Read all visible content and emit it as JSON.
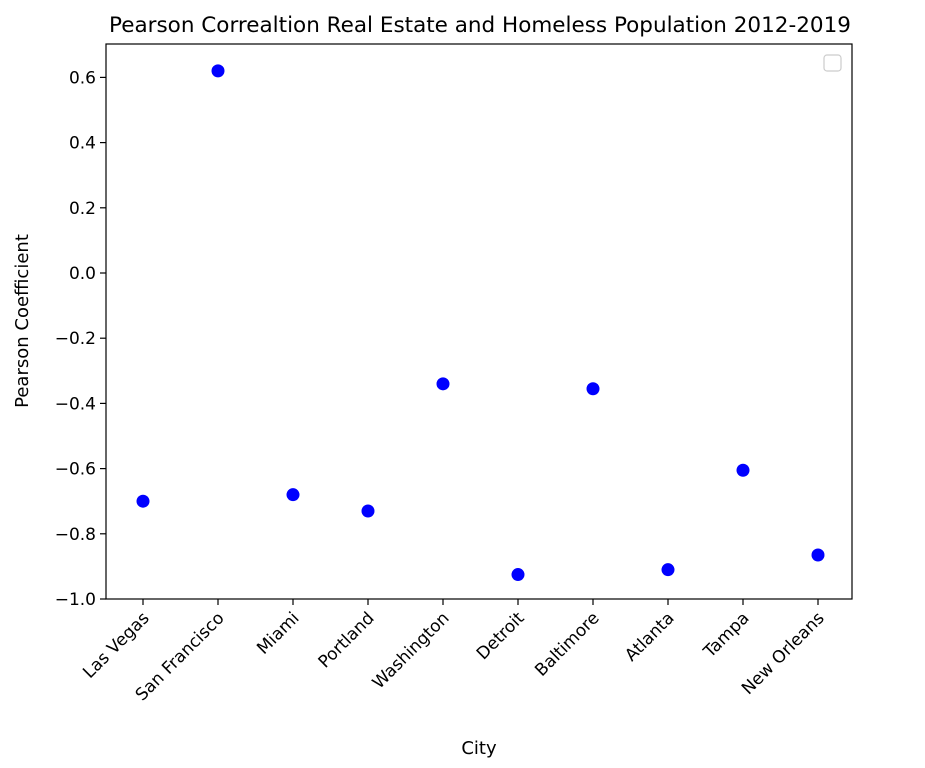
{
  "chart_data": {
    "type": "scatter",
    "title": "Pearson Correaltion Real Estate and Homeless Population 2012-2019",
    "xlabel": "City",
    "ylabel": "Pearson Coefficient",
    "categories": [
      "Las Vegas",
      "San Francisco",
      "Miami",
      "Portland",
      "Washington",
      "Detroit",
      "Baltimore",
      "Atlanta",
      "Tampa",
      "New Orleans"
    ],
    "values": [
      -0.7,
      0.62,
      -0.68,
      -0.73,
      -0.34,
      -0.925,
      -0.355,
      -0.91,
      -0.605,
      -0.865
    ],
    "ylim": [
      -1.0,
      0.7
    ],
    "yticks": [
      -1.0,
      -0.8,
      -0.6,
      -0.4,
      -0.2,
      0.0,
      0.2,
      0.4,
      0.6
    ],
    "ytick_labels": [
      "−1.0",
      "−0.8",
      "−0.6",
      "−0.4",
      "−0.2",
      "0.0",
      "0.2",
      "0.4",
      "0.6"
    ],
    "grid": false,
    "legend": "top-right",
    "legend_entries": [],
    "marker_color": "#0000ff"
  }
}
